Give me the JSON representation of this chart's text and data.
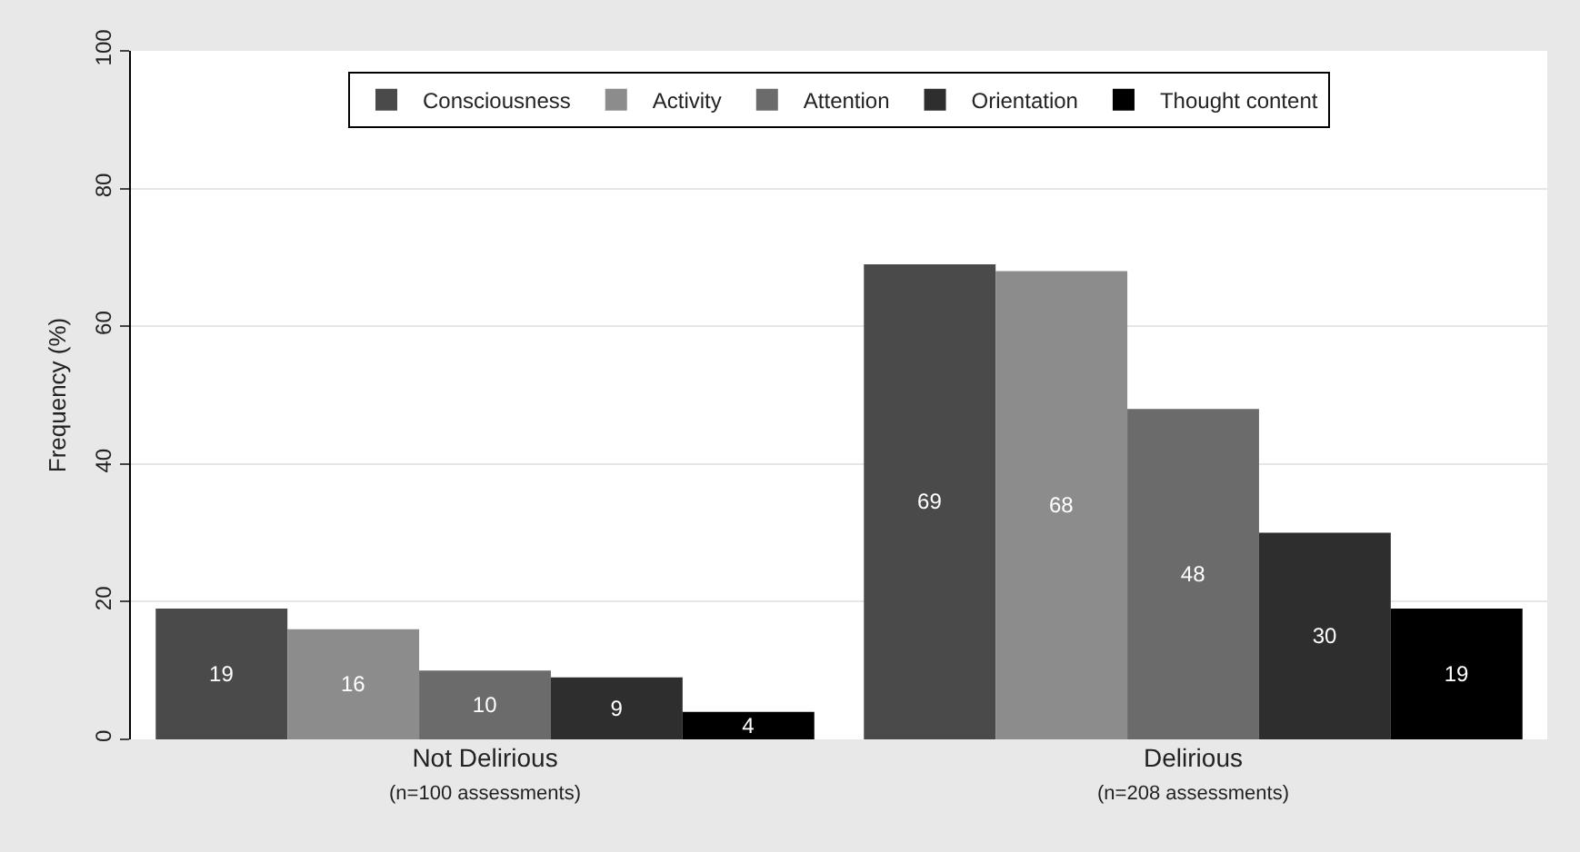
{
  "chart_data": {
    "type": "bar",
    "ylabel": "Frequency (%)",
    "categories": [
      "Not Delirious\n(n=100 assessments)",
      "Delirious\n(n=208 assessments)"
    ],
    "series": [
      {
        "name": "Consciousness",
        "color": "#4a4a4a",
        "values": [
          19,
          69
        ]
      },
      {
        "name": "Activity",
        "color": "#8c8c8c",
        "values": [
          16,
          68
        ]
      },
      {
        "name": "Attention",
        "color": "#6b6b6b",
        "values": [
          10,
          48
        ]
      },
      {
        "name": "Orientation",
        "color": "#2e2e2e",
        "values": [
          9,
          30
        ]
      },
      {
        "name": "Thought content",
        "color": "#000000",
        "values": [
          4,
          19
        ]
      }
    ],
    "ylim": [
      0,
      100
    ],
    "yticks": [
      0,
      20,
      40,
      60,
      80,
      100
    ],
    "grid": "y",
    "legend": "top",
    "data_labels": true
  }
}
